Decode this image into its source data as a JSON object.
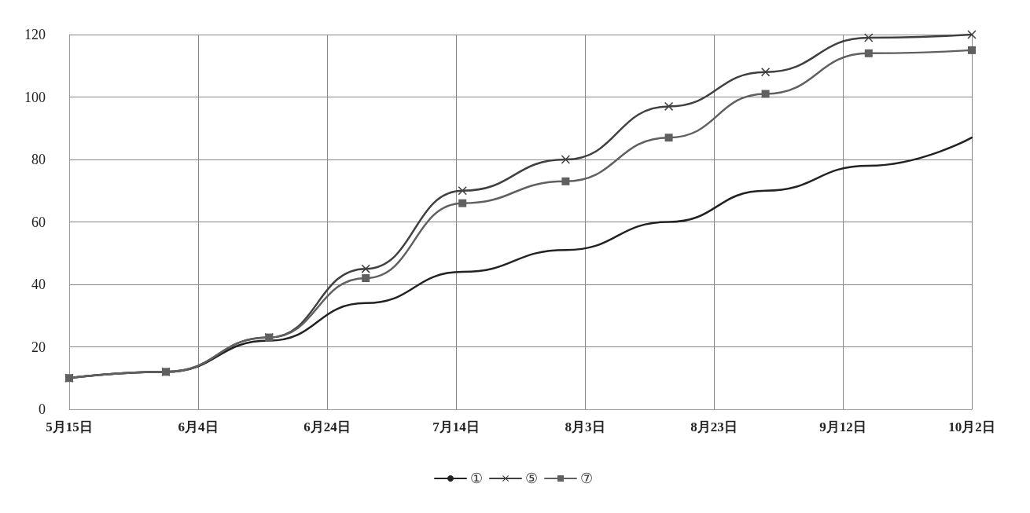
{
  "chart_data": {
    "type": "line",
    "x": [
      "--05-15",
      "--05-30",
      "--06-15",
      "--06-30",
      "--07-15",
      "--07-31",
      "--08-16",
      "--08-31",
      "--09-16",
      "--10-02"
    ],
    "series": [
      {
        "name": "①",
        "color": "#222222",
        "marker": "none",
        "values": [
          10,
          12,
          22,
          34,
          44,
          51,
          60,
          70,
          78,
          87
        ]
      },
      {
        "name": "⑤",
        "color": "#404040",
        "marker": "cross",
        "values": [
          10,
          12,
          23,
          45,
          70,
          80,
          97,
          108,
          119,
          120
        ]
      },
      {
        "name": "⑦",
        "color": "#606060",
        "marker": "square",
        "values": [
          10,
          12,
          23,
          42,
          66,
          73,
          87,
          101,
          114,
          115
        ]
      }
    ],
    "xlim": [
      "--05-15",
      "--10-02"
    ],
    "xticks": [
      {
        "value": "--05-15",
        "label": "5月15日"
      },
      {
        "value": "--06-04",
        "label": "6月4日"
      },
      {
        "value": "--06-24",
        "label": "6月24日"
      },
      {
        "value": "--07-14",
        "label": "7月14日"
      },
      {
        "value": "--08-03",
        "label": "8月3日"
      },
      {
        "value": "--08-23",
        "label": "8月23日"
      },
      {
        "value": "--09-12",
        "label": "9月12日"
      },
      {
        "value": "--10-02",
        "label": "10月2日"
      }
    ],
    "ylim": [
      0,
      120
    ],
    "yticks": [
      0,
      20,
      40,
      60,
      80,
      100,
      120
    ],
    "grid": true,
    "legend": "bottom",
    "line_style": "solid"
  }
}
